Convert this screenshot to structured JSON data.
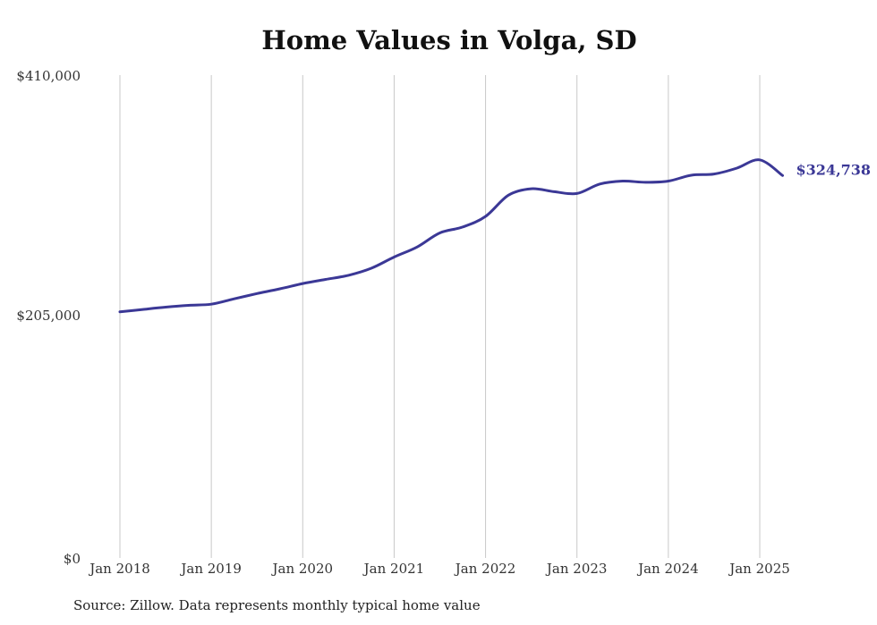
{
  "chart_data": {
    "type": "line",
    "title": "Home Values in Volga, SD",
    "source": "Source: Zillow. Data represents monthly typical home value",
    "ylim": [
      0,
      410000
    ],
    "y_ticks": [
      0,
      205000,
      410000
    ],
    "y_tick_labels": [
      "$0",
      "$205,000",
      "$410,000"
    ],
    "x_ticks": [
      "2018-01",
      "2019-01",
      "2020-01",
      "2021-01",
      "2022-01",
      "2023-01",
      "2024-01",
      "2025-01"
    ],
    "x_tick_labels": [
      "Jan 2018",
      "Jan 2019",
      "Jan 2020",
      "Jan 2021",
      "Jan 2022",
      "Jan 2023",
      "Jan 2024",
      "Jan 2025"
    ],
    "grid": "vertical",
    "line_color": "#3b3896",
    "end_label": "$324,738",
    "series": [
      {
        "x": [
          "2018-01",
          "2018-04",
          "2018-07",
          "2018-10",
          "2019-01",
          "2019-04",
          "2019-07",
          "2019-10",
          "2020-01",
          "2020-04",
          "2020-07",
          "2020-10",
          "2021-01",
          "2021-04",
          "2021-07",
          "2021-10",
          "2022-01",
          "2022-04",
          "2022-07",
          "2022-10",
          "2023-01",
          "2023-04",
          "2023-07",
          "2023-10",
          "2024-01",
          "2024-04",
          "2024-07",
          "2024-10",
          "2025-01",
          "2025-04"
        ],
        "y": [
          209000,
          211000,
          213000,
          214500,
          215500,
          220000,
          224500,
          228500,
          233000,
          236500,
          240000,
          246000,
          255500,
          264000,
          276000,
          281000,
          290000,
          308000,
          313500,
          311000,
          309500,
          317500,
          320000,
          319000,
          320000,
          325000,
          326000,
          331000,
          338000,
          324738
        ]
      }
    ]
  }
}
